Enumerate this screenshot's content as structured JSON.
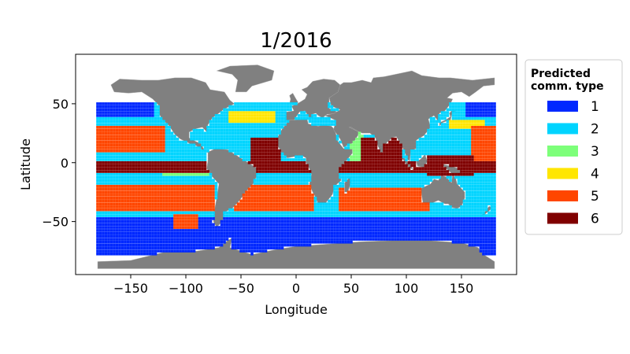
{
  "chart_data": {
    "type": "scatter",
    "title": "1/2016",
    "xlabel": "Longitude",
    "ylabel": "Latitude",
    "xlim": [
      -200,
      200
    ],
    "ylim": [
      -95,
      92
    ],
    "xticks": [
      -150,
      -100,
      -50,
      0,
      50,
      100,
      150
    ],
    "xtick_labels": [
      "−150",
      "−100",
      "−50",
      "0",
      "50",
      "100",
      "150"
    ],
    "yticks": [
      -50,
      0,
      50
    ],
    "ytick_labels": [
      "−50",
      "0",
      "50"
    ],
    "grid": false,
    "land_color": "#808080",
    "legend": {
      "title": "Predicted\ncomm. type",
      "placement": "outside-right",
      "entries": [
        {
          "label": "1",
          "color": "#0028ff"
        },
        {
          "label": "2",
          "color": "#00d4ff"
        },
        {
          "label": "3",
          "color": "#7dff7a"
        },
        {
          "label": "4",
          "color": "#ffe600"
        },
        {
          "label": "5",
          "color": "#ff4600"
        },
        {
          "label": "6",
          "color": "#800000"
        }
      ]
    },
    "regions": [
      {
        "type": 1,
        "lon": [
          -180,
          180
        ],
        "lat": [
          -78,
          -43
        ]
      },
      {
        "type": 1,
        "lon": [
          -180,
          -130
        ],
        "lat": [
          38,
          52
        ]
      },
      {
        "type": 1,
        "lon": [
          155,
          180
        ],
        "lat": [
          38,
          52
        ]
      },
      {
        "type": 2,
        "lon": [
          -180,
          180
        ],
        "lat": [
          -45,
          -30
        ]
      },
      {
        "type": 2,
        "lon": [
          -180,
          -115
        ],
        "lat": [
          -22,
          -10
        ]
      },
      {
        "type": 2,
        "lon": [
          -65,
          -10
        ],
        "lat": [
          28,
          42
        ]
      },
      {
        "type": 2,
        "lon": [
          145,
          180
        ],
        "lat": [
          20,
          38
        ]
      },
      {
        "type": 2,
        "lon": [
          10,
          60
        ],
        "lat": [
          -42,
          -28
        ]
      },
      {
        "type": 3,
        "lon": [
          -120,
          -80
        ],
        "lat": [
          -12,
          -2
        ]
      },
      {
        "type": 3,
        "lon": [
          48,
          62
        ],
        "lat": [
          -5,
          25
        ]
      },
      {
        "type": 4,
        "lon": [
          -60,
          -20
        ],
        "lat": [
          34,
          44
        ]
      },
      {
        "type": 4,
        "lon": [
          140,
          170
        ],
        "lat": [
          30,
          36
        ]
      },
      {
        "type": 5,
        "lon": [
          -180,
          -75
        ],
        "lat": [
          -40,
          -20
        ]
      },
      {
        "type": 5,
        "lon": [
          -180,
          -120
        ],
        "lat": [
          10,
          30
        ]
      },
      {
        "type": 5,
        "lon": [
          160,
          180
        ],
        "lat": [
          0,
          30
        ]
      },
      {
        "type": 5,
        "lon": [
          -55,
          15
        ],
        "lat": [
          -40,
          -20
        ]
      },
      {
        "type": 5,
        "lon": [
          40,
          120
        ],
        "lat": [
          -40,
          -22
        ]
      },
      {
        "type": 5,
        "lon": [
          -110,
          -90
        ],
        "lat": [
          -55,
          -45
        ]
      },
      {
        "type": 6,
        "lon": [
          -180,
          180
        ],
        "lat": [
          -8,
          2
        ]
      },
      {
        "type": 6,
        "lon": [
          -40,
          -15
        ],
        "lat": [
          0,
          20
        ]
      },
      {
        "type": 6,
        "lon": [
          60,
          95
        ],
        "lat": [
          -5,
          20
        ]
      },
      {
        "type": 6,
        "lon": [
          120,
          160
        ],
        "lat": [
          -10,
          5
        ]
      }
    ]
  }
}
